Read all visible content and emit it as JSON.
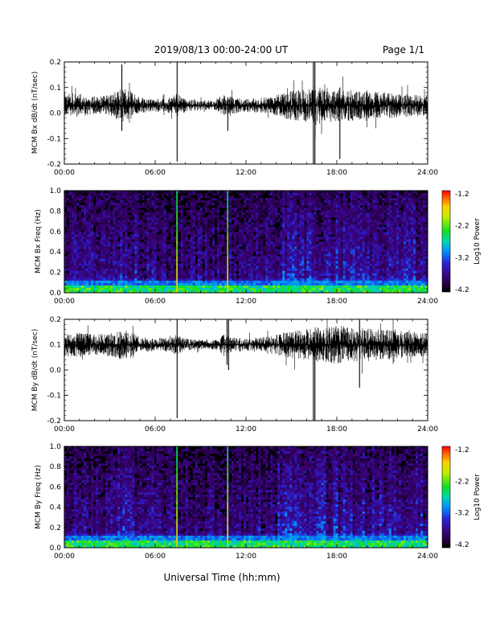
{
  "header": {
    "date_range": "2019/08/13  00:00-24:00 UT",
    "page": "Page 1/1"
  },
  "footer": {
    "xlabel": "Universal Time (hh:mm)"
  },
  "chart_data": [
    {
      "type": "line",
      "panel": "bx-dbdt",
      "ylabel": "MCM Bx dB/dt (nT/sec)",
      "xlim": [
        0,
        24
      ],
      "ylim": [
        -0.2,
        0.2
      ],
      "x_ticks": [
        "00:00",
        "06:00",
        "12:00",
        "18:00",
        "24:00"
      ],
      "y_ticks": [
        "0.2",
        "0.1",
        "0.0",
        "-0.1",
        "-0.2"
      ],
      "baseline": 0.03,
      "series": [
        {
          "hours": [
            0,
            1,
            2,
            3,
            3.8,
            4.5,
            5,
            6,
            7,
            7.4,
            8,
            9,
            10,
            10.5,
            11,
            12,
            13,
            14,
            15,
            16,
            16.6,
            17,
            18,
            19,
            20,
            21,
            22,
            23,
            24
          ],
          "envelope": [
            0.05,
            0.045,
            0.035,
            0.04,
            0.07,
            0.05,
            0.03,
            0.025,
            0.03,
            0.05,
            0.025,
            0.02,
            0.02,
            0.04,
            0.035,
            0.025,
            0.03,
            0.04,
            0.06,
            0.065,
            0.08,
            0.07,
            0.065,
            0.06,
            0.055,
            0.05,
            0.05,
            0.045,
            0.04
          ]
        }
      ],
      "spikes": [
        {
          "hour": 3.8,
          "low": -0.07,
          "high": 0.19
        },
        {
          "hour": 7.45,
          "low": -0.19,
          "high": 0.21
        },
        {
          "hour": 10.8,
          "low": -0.07,
          "high": 0.06
        },
        {
          "hour": 16.45,
          "low": -0.21,
          "high": 0.21
        },
        {
          "hour": 16.55,
          "low": -0.21,
          "high": 0.21
        },
        {
          "hour": 18.2,
          "low": -0.18,
          "high": 0.1
        }
      ]
    },
    {
      "type": "heatmap",
      "panel": "bx-spectrogram",
      "ylabel": "MCM Bx Freq (Hz)",
      "xlim": [
        0,
        24
      ],
      "ylim": [
        0,
        1.0
      ],
      "x_ticks": [
        "00:00",
        "06:00",
        "12:00",
        "18:00",
        "24:00"
      ],
      "y_ticks": [
        "1.0",
        "0.8",
        "0.6",
        "0.4",
        "0.2",
        "0.0"
      ],
      "colorbar": {
        "label": "Log10 Power",
        "ticks": [
          "-1.2",
          "-2.2",
          "-3.2",
          "-4.2"
        ],
        "range": [
          -4.2,
          -1.2
        ]
      },
      "bright_columns_hours": [
        7.45,
        10.8
      ]
    },
    {
      "type": "line",
      "panel": "by-dbdt",
      "ylabel": "MCM By dB/dt (nT/sec)",
      "xlim": [
        0,
        24
      ],
      "ylim": [
        -0.2,
        0.2
      ],
      "x_ticks": [
        "00:00",
        "06:00",
        "12:00",
        "18:00",
        "24:00"
      ],
      "y_ticks": [
        "0.2",
        "0.1",
        "0.0",
        "-0.1",
        "-0.2"
      ],
      "baseline": 0.1,
      "series": [
        {
          "hours": [
            0,
            1,
            2,
            3,
            3.8,
            4.5,
            5,
            6,
            7,
            7.4,
            8,
            9,
            10,
            10.5,
            11,
            12,
            13,
            14,
            15,
            16,
            16.6,
            17,
            18,
            19,
            20,
            21,
            22,
            23,
            24
          ],
          "envelope": [
            0.05,
            0.05,
            0.04,
            0.045,
            0.06,
            0.05,
            0.03,
            0.025,
            0.03,
            0.04,
            0.025,
            0.02,
            0.02,
            0.04,
            0.03,
            0.025,
            0.03,
            0.04,
            0.055,
            0.06,
            0.07,
            0.07,
            0.075,
            0.07,
            0.065,
            0.06,
            0.055,
            0.05,
            0.045
          ]
        }
      ],
      "spikes": [
        {
          "hour": 7.45,
          "low": -0.19,
          "high": 0.2
        },
        {
          "hour": 10.75,
          "low": 0.02,
          "high": 0.21
        },
        {
          "hour": 10.85,
          "low": 0.0,
          "high": 0.21
        },
        {
          "hour": 16.45,
          "low": -0.21,
          "high": 0.15
        },
        {
          "hour": 16.55,
          "low": -0.21,
          "high": 0.15
        },
        {
          "hour": 19.5,
          "low": -0.07,
          "high": 0.2
        }
      ]
    },
    {
      "type": "heatmap",
      "panel": "by-spectrogram",
      "ylabel": "MCM By Freq (Hz)",
      "xlim": [
        0,
        24
      ],
      "ylim": [
        0,
        1.0
      ],
      "x_ticks": [
        "00:00",
        "06:00",
        "12:00",
        "18:00",
        "24:00"
      ],
      "y_ticks": [
        "1.0",
        "0.8",
        "0.6",
        "0.4",
        "0.2",
        "0.0"
      ],
      "colorbar": {
        "label": "Log10 Power",
        "ticks": [
          "-1.2",
          "-2.2",
          "-3.2",
          "-4.2"
        ],
        "range": [
          -4.2,
          -1.2
        ]
      },
      "bright_columns_hours": [
        7.45,
        10.8
      ]
    }
  ]
}
